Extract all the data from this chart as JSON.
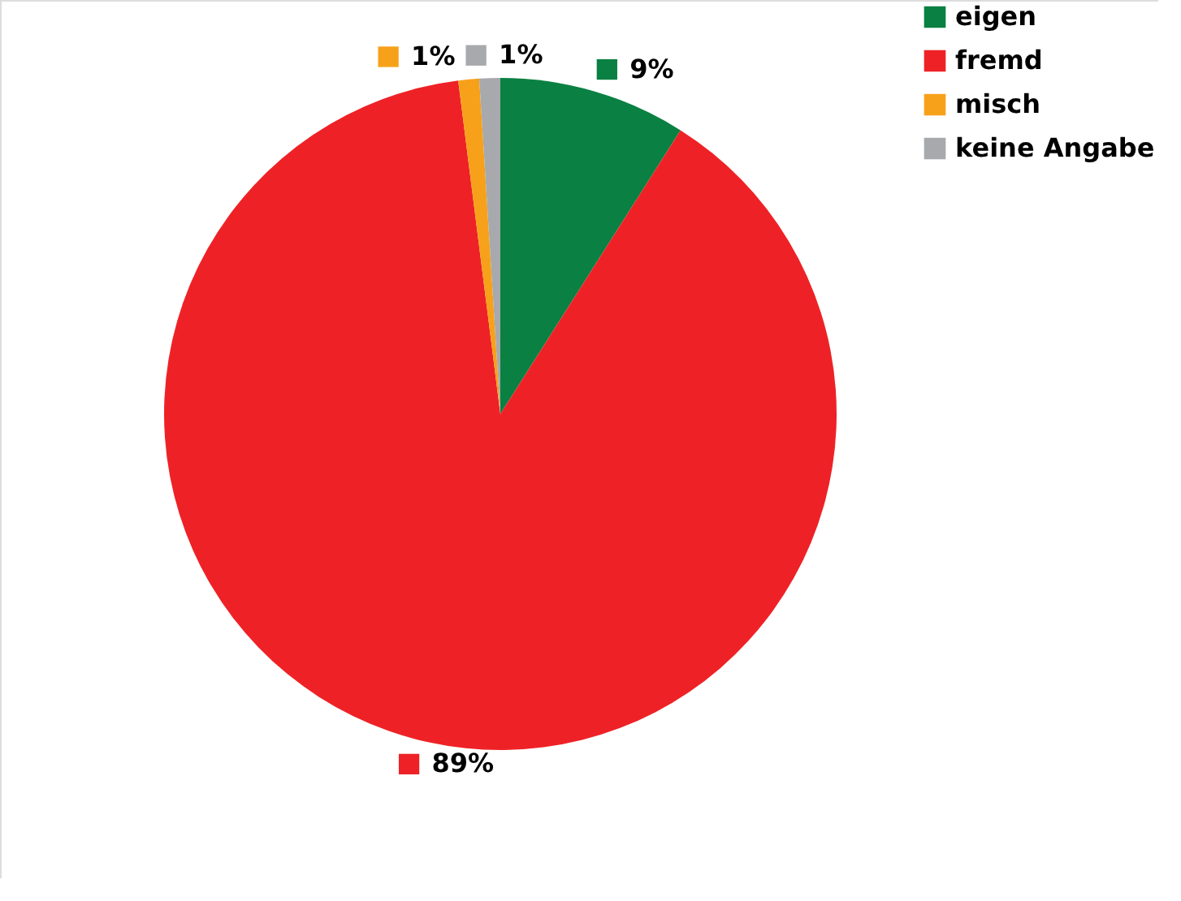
{
  "chart_data": {
    "type": "pie",
    "categories": [
      "eigen",
      "fremd",
      "misch",
      "keine Angabe"
    ],
    "values": [
      9,
      89,
      1,
      1
    ],
    "colors": [
      "#0a8042",
      "#ee2226",
      "#f7a11a",
      "#a7a9ac"
    ],
    "value_labels": [
      "9%",
      "89%",
      "1%",
      "1%"
    ],
    "legend": "top right"
  }
}
